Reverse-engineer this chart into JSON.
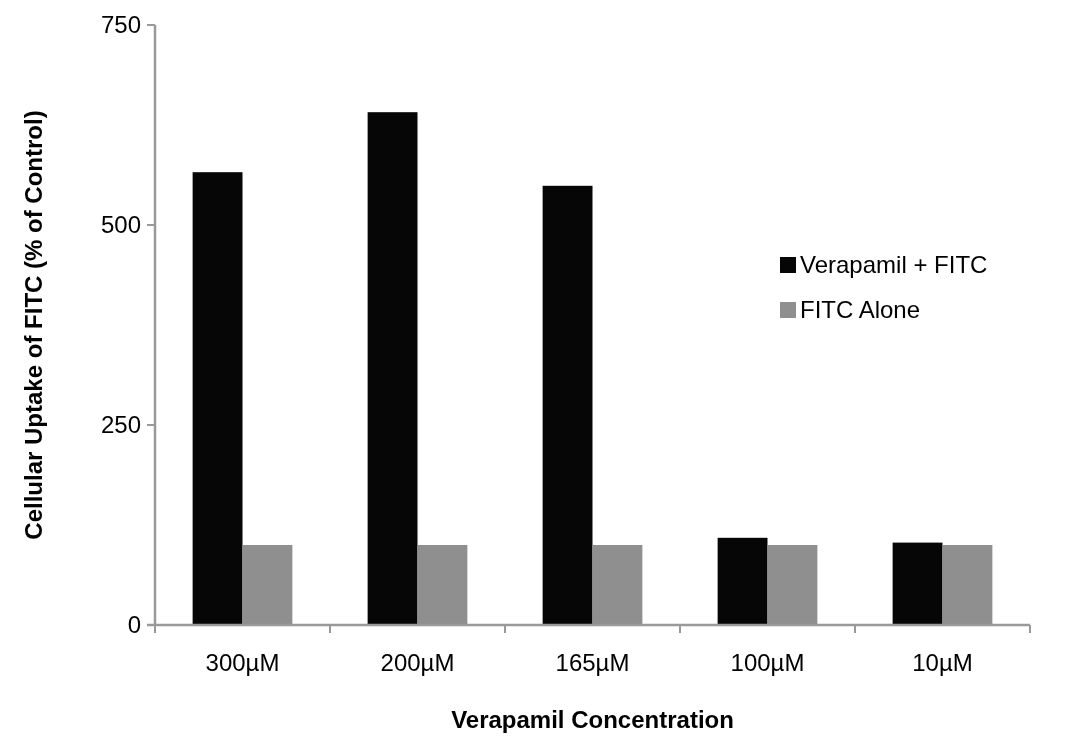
{
  "chart_data": {
    "type": "bar",
    "xlabel": "Verapamil Concentration",
    "ylabel": "Cellular Uptake of FITC (% of Control)",
    "categories": [
      "300µM",
      "200µM",
      "165µM",
      "100µM",
      "10µM"
    ],
    "series": [
      {
        "name": "Verapamil + FITC",
        "color": "#060606",
        "values": [
          566,
          641,
          549,
          109,
          103
        ]
      },
      {
        "name": "FITC Alone",
        "color": "#8f8f8f",
        "values": [
          100,
          100,
          100,
          100,
          100
        ]
      }
    ],
    "ylim": [
      0,
      750
    ],
    "yticks": [
      0,
      250,
      500,
      750
    ],
    "grid": false,
    "legend": "right"
  }
}
